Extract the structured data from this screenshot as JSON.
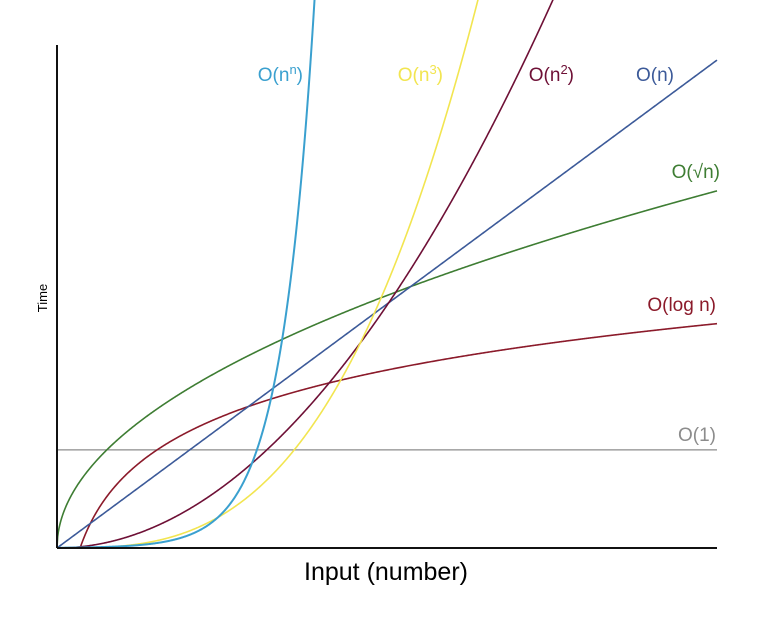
{
  "chart_data": {
    "type": "line",
    "title": "",
    "xlabel": "Input (number)",
    "ylabel": "Time",
    "xlim": [
      0,
      100
    ],
    "ylim": [
      0,
      100
    ],
    "grid": false,
    "series": [
      {
        "name": "O(1)",
        "label_base": "O(1)",
        "label_sup": "",
        "label_tail": "",
        "color": "#8c8c8c",
        "fn": "const",
        "k": 19.5
      },
      {
        "name": "O(log n)",
        "label_base": "O(log n)",
        "label_sup": "",
        "label_tail": "",
        "color": "#8b1a2a",
        "fn": "log",
        "k": 44.6,
        "x0": 3.5
      },
      {
        "name": "O(√n)",
        "label_base": "O(√n)",
        "label_sup": "",
        "label_tail": "",
        "color": "#3e7d33",
        "fn": "sqrt",
        "k": 7.1
      },
      {
        "name": "O(n)",
        "label_base": "O(n)",
        "label_sup": "",
        "label_tail": "",
        "color": "#3c5a99",
        "fn": "linear",
        "k": 0.97
      },
      {
        "name": "O(n2)",
        "label_base": "O(n",
        "label_sup": "2",
        "label_tail": ")",
        "color": "#6e1036",
        "fn": "power",
        "k": 0.0193,
        "p": 2
      },
      {
        "name": "O(n3)",
        "label_base": "O(n",
        "label_sup": "3",
        "label_tail": ")",
        "color": "#f2e550",
        "fn": "power",
        "k": 0.00042,
        "p": 3
      },
      {
        "name": "O(nn)",
        "label_base": "O(n",
        "label_sup": "n",
        "label_tail": ")",
        "color": "#3aa0cf",
        "fn": "exp",
        "k": 0.05,
        "r": 0.197
      }
    ]
  }
}
